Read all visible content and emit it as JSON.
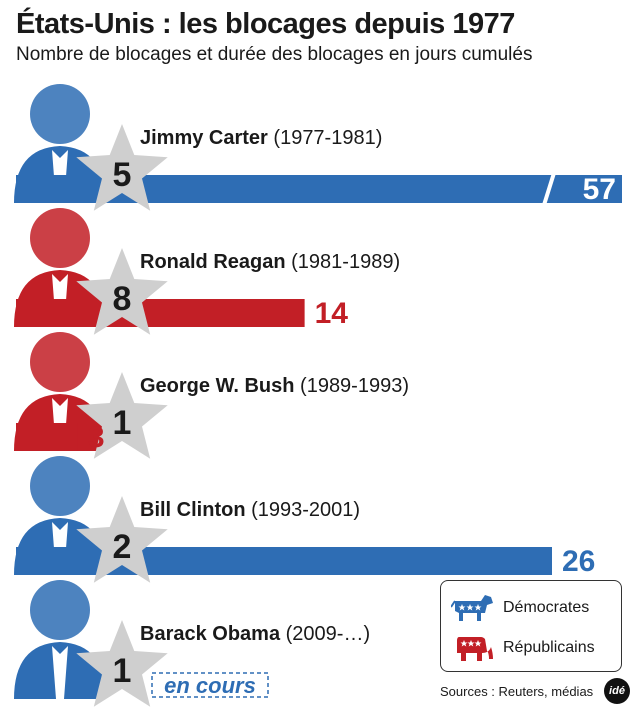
{
  "title": "États-Unis : les blocages depuis 1977",
  "subtitle": "Nombre de blocages et durée des blocages en jours cumulés",
  "chart_data": {
    "type": "bar",
    "orientation": "horizontal",
    "categories": [
      "Jimmy Carter",
      "Ronald Reagan",
      "George W. Bush",
      "Bill Clinton",
      "Barack Obama"
    ],
    "periods": [
      "(1977-1981)",
      "(1981-1989)",
      "(1989-1993)",
      "(1993-2001)",
      "(2009-…)"
    ],
    "parties": [
      "democrat",
      "republican",
      "republican",
      "democrat",
      "democrat"
    ],
    "blocages": [
      5,
      8,
      1,
      2,
      1
    ],
    "jours": [
      57,
      14,
      3,
      26,
      null
    ],
    "value_labels": [
      "57",
      "14",
      "3",
      "26",
      "en cours"
    ],
    "axis_break_on": "Jimmy Carter",
    "colors": {
      "democrat": "#2e6db4",
      "republican": "#c21f26"
    }
  },
  "legend": {
    "democrat": "Démocrates",
    "republican": "Républicains"
  },
  "source": "Sources : Reuters, médias",
  "logo": "idé"
}
